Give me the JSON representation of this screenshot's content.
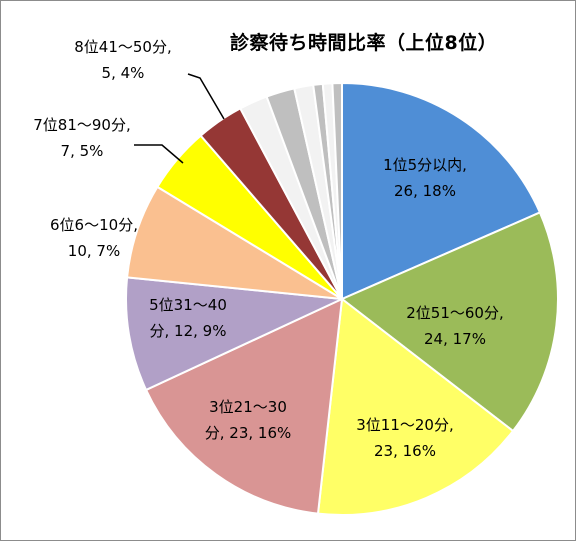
{
  "chart_data": {
    "type": "pie",
    "title": "診察待ち時間比率（上位8位）",
    "slices": [
      {
        "label": "1位5分以内",
        "value": 26,
        "percent": "18%",
        "color": "#4f8ed6",
        "label_lines": [
          "1位5分以内,",
          "26, 18%"
        ]
      },
      {
        "label": "2位51～60分",
        "value": 24,
        "percent": "17%",
        "color": "#9bbb59",
        "label_lines": [
          "2位51～60分,",
          "24, 17%"
        ]
      },
      {
        "label": "3位11～20分",
        "value": 23,
        "percent": "16%",
        "color": "#ffff66",
        "label_lines": [
          "3位11～20分,",
          "23, 16%"
        ]
      },
      {
        "label": "3位21～30分",
        "value": 23,
        "percent": "16%",
        "color": "#d99594",
        "label_lines": [
          "3位21～30",
          "分, 23, 16%"
        ]
      },
      {
        "label": "5位31～40分",
        "value": 12,
        "percent": "9%",
        "color": "#b1a0c7",
        "label_lines": [
          "5位31～40",
          "分, 12, 9%"
        ]
      },
      {
        "label": "6位6～10分",
        "value": 10,
        "percent": "7%",
        "color": "#fac090",
        "label_lines": [
          "6位6～10分,",
          "10, 7%"
        ]
      },
      {
        "label": "7位81～90分",
        "value": 7,
        "percent": "5%",
        "color": "#ffff00",
        "label_lines": [
          "7位81～90分,",
          "7, 5%"
        ]
      },
      {
        "label": "8位41～50分",
        "value": 5,
        "percent": "4%",
        "color": "#953735",
        "label_lines": [
          "8位41～50分,",
          "5, 4%"
        ]
      },
      {
        "label": "",
        "value": 3,
        "color": "#f2f2f2"
      },
      {
        "label": "",
        "value": 3,
        "color": "#bfbfbf"
      },
      {
        "label": "",
        "value": 2,
        "color": "#f2f2f2"
      },
      {
        "label": "",
        "value": 1,
        "color": "#bfbfbf"
      },
      {
        "label": "",
        "value": 1,
        "color": "#f2f2f2"
      },
      {
        "label": "",
        "value": 1,
        "color": "#bfbfbf"
      }
    ]
  }
}
